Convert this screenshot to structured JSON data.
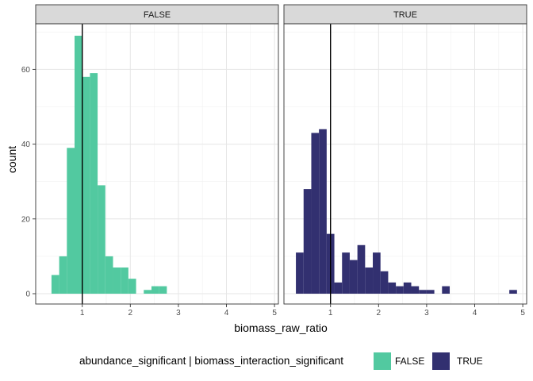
{
  "chart_data": {
    "type": "bar",
    "subtype": "faceted-histogram",
    "xlabel": "biomass_raw_ratio",
    "ylabel": "count",
    "xlim": [
      0.25,
      5.0
    ],
    "ylim": [
      0,
      72
    ],
    "xticks": [
      "1",
      "2",
      "3",
      "4",
      "5"
    ],
    "yticks": [
      "0",
      "20",
      "40",
      "60"
    ],
    "bin_width": 0.16,
    "reference_line_x": 1,
    "grid": true,
    "legend": {
      "position": "bottom",
      "title": "abundance_significant | biomass_interaction_significant",
      "entries": [
        {
          "label": "FALSE",
          "color": "#52C9A0"
        },
        {
          "label": "TRUE",
          "color": "#323070"
        }
      ]
    },
    "facets": [
      {
        "label": "FALSE",
        "color": "#52C9A0",
        "bins": [
          {
            "x0": 0.36,
            "count": 5
          },
          {
            "x0": 0.52,
            "count": 10
          },
          {
            "x0": 0.68,
            "count": 39
          },
          {
            "x0": 0.84,
            "count": 69
          },
          {
            "x0": 1.0,
            "count": 58
          },
          {
            "x0": 1.16,
            "count": 59
          },
          {
            "x0": 1.32,
            "count": 29
          },
          {
            "x0": 1.48,
            "count": 10
          },
          {
            "x0": 1.64,
            "count": 7
          },
          {
            "x0": 1.8,
            "count": 7
          },
          {
            "x0": 1.96,
            "count": 4
          },
          {
            "x0": 2.28,
            "count": 1
          },
          {
            "x0": 2.44,
            "count": 2
          },
          {
            "x0": 2.6,
            "count": 2
          }
        ]
      },
      {
        "label": "TRUE",
        "color": "#323070",
        "bins": [
          {
            "x0": 0.28,
            "count": 11
          },
          {
            "x0": 0.44,
            "count": 28
          },
          {
            "x0": 0.6,
            "count": 43
          },
          {
            "x0": 0.76,
            "count": 44
          },
          {
            "x0": 0.92,
            "count": 16
          },
          {
            "x0": 1.08,
            "count": 3
          },
          {
            "x0": 1.24,
            "count": 11
          },
          {
            "x0": 1.4,
            "count": 9
          },
          {
            "x0": 1.56,
            "count": 13
          },
          {
            "x0": 1.72,
            "count": 7
          },
          {
            "x0": 1.88,
            "count": 11
          },
          {
            "x0": 2.04,
            "count": 6
          },
          {
            "x0": 2.2,
            "count": 3
          },
          {
            "x0": 2.36,
            "count": 2
          },
          {
            "x0": 2.52,
            "count": 3
          },
          {
            "x0": 2.68,
            "count": 2
          },
          {
            "x0": 2.84,
            "count": 1
          },
          {
            "x0": 3.0,
            "count": 1
          },
          {
            "x0": 3.32,
            "count": 2
          },
          {
            "x0": 4.72,
            "count": 1
          }
        ]
      }
    ]
  }
}
